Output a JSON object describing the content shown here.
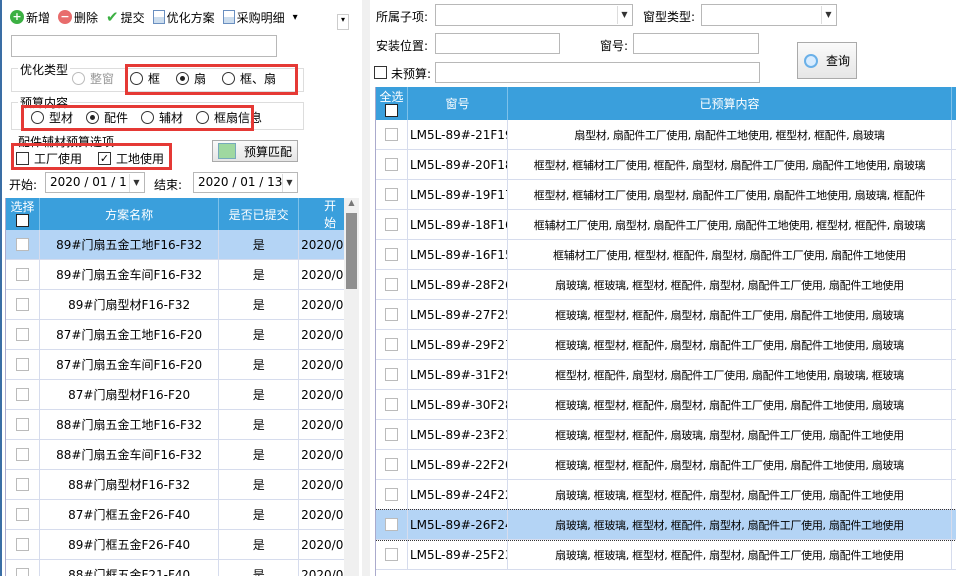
{
  "toolbar": {
    "items": [
      {
        "label": "新增",
        "icon": "plus-icon",
        "color": "#3cb043"
      },
      {
        "label": "删除",
        "icon": "minus-icon",
        "color": "#e86c6c"
      },
      {
        "label": "提交",
        "icon": "check-icon",
        "color": "#3cb043"
      },
      {
        "label": "优化方案",
        "icon": "report-icon"
      },
      {
        "label": "采购明细",
        "icon": "report-icon"
      }
    ],
    "more": "▾"
  },
  "opt_type": {
    "label": "优化类型",
    "options": [
      {
        "label": "整窗",
        "disabled": true,
        "checked": false
      },
      {
        "label": "框",
        "checked": false
      },
      {
        "label": "扇",
        "checked": true
      },
      {
        "label": "框、扇",
        "checked": false
      }
    ]
  },
  "budget": {
    "label": "预算内容",
    "options": [
      {
        "label": "型材",
        "checked": false
      },
      {
        "label": "配件",
        "checked": true
      },
      {
        "label": "辅材",
        "checked": false
      },
      {
        "label": "框扇信息",
        "checked": false
      }
    ]
  },
  "accessory": {
    "label": "配件辅材预算选项",
    "options": [
      {
        "label": "工厂使用",
        "checked": false
      },
      {
        "label": "工地使用",
        "checked": true
      }
    ],
    "match_button": "预算匹配"
  },
  "dates": {
    "start_label": "开始:",
    "start": "2020 / 01 / 1",
    "end_label": "结束:",
    "end": "2020 / 01 / 13"
  },
  "left_grid": {
    "columns": [
      "选择",
      "方案名称",
      "是否已提交",
      "开始"
    ],
    "selected": 0,
    "rows": [
      {
        "name": "89#门扇五金工地F16-F32",
        "submitted": "是",
        "start": "2020/0"
      },
      {
        "name": "89#门扇五金车间F16-F32",
        "submitted": "是",
        "start": "2020/0"
      },
      {
        "name": "89#门扇型材F16-F32",
        "submitted": "是",
        "start": "2020/0"
      },
      {
        "name": "87#门扇五金工地F16-F20",
        "submitted": "是",
        "start": "2020/0"
      },
      {
        "name": "87#门扇五金车间F16-F20",
        "submitted": "是",
        "start": "2020/0"
      },
      {
        "name": "87#门扇型材F16-F20",
        "submitted": "是",
        "start": "2020/0"
      },
      {
        "name": "88#门扇五金工地F16-F32",
        "submitted": "是",
        "start": "2020/0"
      },
      {
        "name": "88#门扇五金车间F16-F32",
        "submitted": "是",
        "start": "2020/0"
      },
      {
        "name": "88#门扇型材F16-F32",
        "submitted": "是",
        "start": "2020/0"
      },
      {
        "name": "87#门框五金F26-F40",
        "submitted": "是",
        "start": "2020/0"
      },
      {
        "name": "89#门框五金F26-F40",
        "submitted": "是",
        "start": "2020/0"
      },
      {
        "name": "88#门框五金F21-F40",
        "submitted": "是",
        "start": "2020/0"
      }
    ]
  },
  "filters": {
    "subitem_label": "所属子项:",
    "subitem": "",
    "window_type_label": "窗型类型:",
    "window_type": "",
    "location_label": "安装位置:",
    "location": "",
    "window_no_label": "窗号:",
    "window_no": "",
    "unbudgeted_label": "未预算:",
    "unbudgeted_checked": false,
    "unbudgeted": "",
    "query_button": "查询"
  },
  "right_grid": {
    "columns": [
      "全选",
      "窗号",
      "已预算内容"
    ],
    "selected": 13,
    "rows": [
      {
        "no": "LM5L-89#-21F19",
        "content": "扇型材, 扇配件工厂使用, 扇配件工地使用, 框型材, 框配件, 扇玻璃"
      },
      {
        "no": "LM5L-89#-20F18",
        "content": "框型材, 框辅材工厂使用, 框配件, 扇型材, 扇配件工厂使用, 扇配件工地使用, 扇玻璃"
      },
      {
        "no": "LM5L-89#-19F17",
        "content": "框型材, 框辅材工厂使用, 扇型材, 扇配件工厂使用, 扇配件工地使用, 扇玻璃, 框配件"
      },
      {
        "no": "LM5L-89#-18F16",
        "content": "框辅材工厂使用, 扇型材, 扇配件工厂使用, 扇配件工地使用, 框型材, 框配件, 扇玻璃"
      },
      {
        "no": "LM5L-89#-16F15",
        "content": "框辅材工厂使用, 框型材, 框配件, 扇型材, 扇配件工厂使用, 扇配件工地使用"
      },
      {
        "no": "LM5L-89#-28F26",
        "content": "扇玻璃, 框玻璃, 框型材, 框配件, 扇型材, 扇配件工厂使用, 扇配件工地使用"
      },
      {
        "no": "LM5L-89#-27F25",
        "content": "框玻璃, 框型材, 框配件, 扇型材, 扇配件工厂使用, 扇配件工地使用, 扇玻璃"
      },
      {
        "no": "LM5L-89#-29F27",
        "content": "框玻璃, 框型材, 框配件, 扇型材, 扇配件工厂使用, 扇配件工地使用, 扇玻璃"
      },
      {
        "no": "LM5L-89#-31F29",
        "content": "框型材, 框配件, 扇型材, 扇配件工厂使用, 扇配件工地使用, 扇玻璃, 框玻璃"
      },
      {
        "no": "LM5L-89#-30F28",
        "content": "框玻璃, 框型材, 框配件, 扇型材, 扇配件工厂使用, 扇配件工地使用, 扇玻璃"
      },
      {
        "no": "LM5L-89#-23F21",
        "content": "框玻璃, 框型材, 框配件, 扇玻璃, 扇型材, 扇配件工厂使用, 扇配件工地使用"
      },
      {
        "no": "LM5L-89#-22F20",
        "content": "框玻璃, 框型材, 框配件, 扇型材, 扇配件工厂使用, 扇配件工地使用, 扇玻璃"
      },
      {
        "no": "LM5L-89#-24F22",
        "content": "扇玻璃, 框玻璃, 框型材, 框配件, 扇型材, 扇配件工厂使用, 扇配件工地使用"
      },
      {
        "no": "LM5L-89#-26F24",
        "content": "扇玻璃, 框玻璃, 框型材, 框配件, 扇型材, 扇配件工厂使用, 扇配件工地使用"
      },
      {
        "no": "LM5L-89#-25F23",
        "content": "扇玻璃, 框玻璃, 框型材, 框配件, 扇型材, 扇配件工厂使用, 扇配件工地使用"
      }
    ]
  },
  "colors": {
    "header": "#3a9fdc",
    "selected_row": "#b4d4f5",
    "highlight_box": "#e53935"
  }
}
